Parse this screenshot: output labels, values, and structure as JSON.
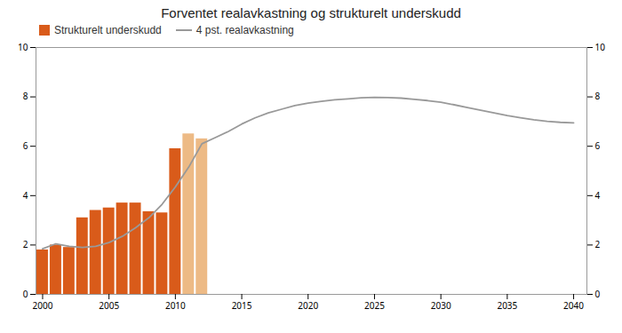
{
  "chart_data": {
    "type": "bar",
    "title": "Forventet realavkastning og strukturelt underskudd",
    "xlim": [
      1999.5,
      2041
    ],
    "xticks": [
      2000,
      2005,
      2010,
      2015,
      2020,
      2025,
      2030,
      2035,
      2040
    ],
    "ylim": [
      0,
      10
    ],
    "yticks": [
      0,
      2,
      4,
      6,
      8,
      10
    ],
    "y2lim": [
      0,
      10
    ],
    "y2ticks": [
      0,
      2,
      4,
      6,
      8,
      10
    ],
    "grid": false,
    "legend": "upper left",
    "series": [
      {
        "name": "Strukturelt underskudd",
        "type": "bar",
        "color": "#D95B1A",
        "x": [
          2000,
          2001,
          2002,
          2003,
          2004,
          2005,
          2006,
          2007,
          2008,
          2009,
          2010,
          2011,
          2012
        ],
        "values": [
          1.8,
          2.0,
          1.9,
          3.1,
          3.4,
          3.5,
          3.7,
          3.7,
          3.35,
          3.3,
          5.9,
          6.5,
          6.3
        ],
        "colors": [
          "#D95B1A",
          "#D95B1A",
          "#D95B1A",
          "#D95B1A",
          "#D95B1A",
          "#D95B1A",
          "#D95B1A",
          "#D95B1A",
          "#D95B1A",
          "#D95B1A",
          "#D95B1A",
          "#EDBA85",
          "#EDBA85"
        ]
      },
      {
        "name": "4 pst. realavkastning",
        "type": "line",
        "color": "#999999",
        "axis": "y2",
        "x": [
          2000,
          2001,
          2002,
          2003,
          2004,
          2005,
          2006,
          2007,
          2008,
          2009,
          2010,
          2011,
          2012,
          2013,
          2014,
          2015,
          2016,
          2017,
          2018,
          2019,
          2020,
          2021,
          2022,
          2023,
          2024,
          2025,
          2026,
          2027,
          2028,
          2029,
          2030,
          2031,
          2032,
          2033,
          2034,
          2035,
          2036,
          2037,
          2038,
          2039,
          2040
        ],
        "values": [
          1.85,
          2.05,
          1.95,
          1.9,
          1.95,
          2.1,
          2.35,
          2.7,
          3.1,
          3.65,
          4.35,
          5.15,
          6.1,
          6.35,
          6.6,
          6.9,
          7.15,
          7.35,
          7.5,
          7.65,
          7.75,
          7.82,
          7.88,
          7.92,
          7.96,
          7.98,
          7.97,
          7.95,
          7.9,
          7.85,
          7.78,
          7.68,
          7.57,
          7.46,
          7.35,
          7.24,
          7.15,
          7.07,
          7.01,
          6.97,
          6.95
        ]
      }
    ]
  }
}
